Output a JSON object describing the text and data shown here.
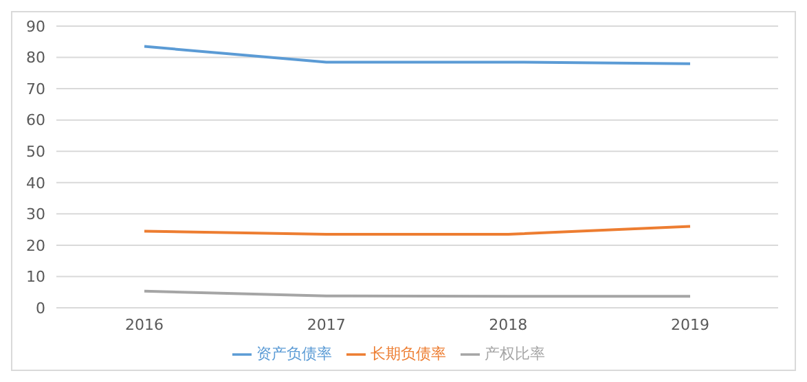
{
  "chart_data": {
    "type": "line",
    "categories": [
      "2016",
      "2017",
      "2018",
      "2019"
    ],
    "series": [
      {
        "name": "资产负债率",
        "color": "#5b9bd5",
        "values": [
          83.5,
          78.5,
          78.5,
          78
        ]
      },
      {
        "name": "长期负债率",
        "color": "#ed7d31",
        "values": [
          24.5,
          23.5,
          23.5,
          26
        ]
      },
      {
        "name": "产权比率",
        "color": "#a5a5a5",
        "values": [
          5.3,
          3.8,
          3.7,
          3.7
        ]
      }
    ],
    "ylim": [
      0,
      90
    ],
    "yticks": [
      0,
      10,
      20,
      30,
      40,
      50,
      60,
      70,
      80,
      90
    ],
    "grid": "y",
    "legend": "bottom",
    "marker": "none",
    "line_style": "solid"
  }
}
